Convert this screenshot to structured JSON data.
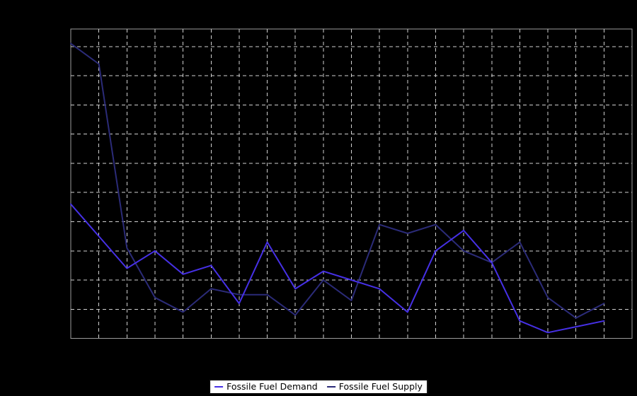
{
  "chart_data": {
    "type": "line",
    "title": "",
    "point_count": 20,
    "x_tick_labels_visible": false,
    "y_tick_labels_visible": false,
    "ylim": [
      0,
      1.06
    ],
    "ytick_step": 0.1,
    "grid": true,
    "grid_style": "dashed",
    "legend_position": "bottom-center",
    "series": [
      {
        "name": "Fossile Fuel Demand",
        "color": "#4630e6",
        "values": [
          0.46,
          0.35,
          0.24,
          0.3,
          0.22,
          0.25,
          0.12,
          0.33,
          0.17,
          0.23,
          0.2,
          0.17,
          0.09,
          0.3,
          0.37,
          0.26,
          0.06,
          0.02,
          0.04,
          0.06
        ]
      },
      {
        "name": "Fossile Fuel Supply",
        "color": "#2b2b78",
        "values": [
          1.01,
          0.94,
          0.31,
          0.14,
          0.09,
          0.17,
          0.15,
          0.15,
          0.08,
          0.2,
          0.13,
          0.39,
          0.36,
          0.39,
          0.3,
          0.26,
          0.33,
          0.14,
          0.07,
          0.12
        ]
      }
    ]
  },
  "colors": {
    "background": "#000000",
    "plot_background": "#000000",
    "plot_border": "#9b9b9b",
    "gridline": "#d0d0d0",
    "legend_background": "#ffffff",
    "legend_border": "#000000",
    "legend_text": "#000000"
  }
}
